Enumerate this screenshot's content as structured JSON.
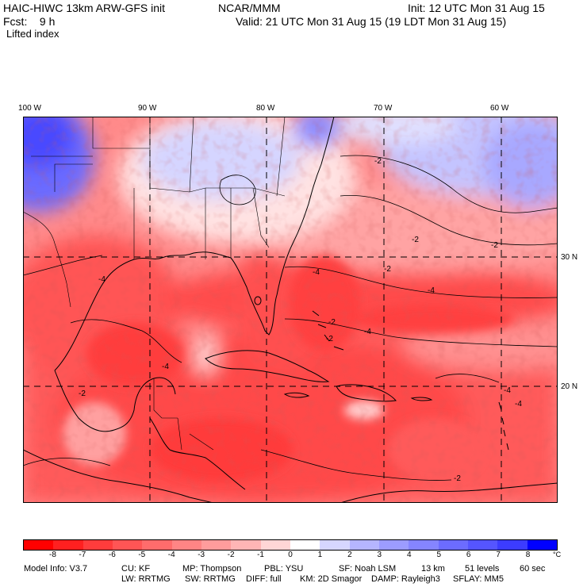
{
  "header": {
    "model_title": "HAIC-HIWC 13km ARW-GFS init",
    "institution": "NCAR/MMM",
    "init": "Init: 12 UTC Mon 31 Aug 15",
    "forecast": "Fcst:    9 h",
    "valid": "Valid: 21 UTC Mon 31 Aug 15 (19 LDT Mon 31 Aug 15)",
    "field": "Lifted index"
  },
  "axes": {
    "longitude_labels": [
      "100 W",
      "90 W",
      "80 W",
      "70 W",
      "60 W"
    ],
    "latitude_labels": [
      "30 N",
      "20 N"
    ]
  },
  "map": {
    "contour_labels": [
      "-2",
      "-2",
      "-4",
      "-4",
      "-4",
      "-2",
      "-2",
      "-4",
      "-4",
      "-2",
      "-4",
      "-2",
      "-2",
      "-2",
      "-4"
    ]
  },
  "legend": {
    "ticks": [
      "-8",
      "-7",
      "-6",
      "-5",
      "-4",
      "-3",
      "-2",
      "-1",
      "0",
      "1",
      "2",
      "3",
      "4",
      "5",
      "6",
      "7",
      "8"
    ],
    "unit": "°C",
    "colors": [
      "#ff0000",
      "#ff2020",
      "#ff3c3c",
      "#ff5555",
      "#ff6c6c",
      "#ff8585",
      "#ff9c9c",
      "#ffb5b5",
      "#ffd6d6",
      "#ffffff",
      "#d6d6ff",
      "#b5b5ff",
      "#9c9cff",
      "#8585ff",
      "#6c6cff",
      "#5555ff",
      "#3c3cff",
      "#0000ff"
    ]
  },
  "model_info": {
    "line1": [
      "Model Info: V3.7",
      "CU: KF",
      "MP: Thompson",
      "PBL: YSU",
      "SF: Noah LSM",
      "13 km",
      "51 levels",
      "60 sec"
    ],
    "line2": [
      "LW: RRTMG",
      "SW: RRTMG",
      "DIFF: full",
      "KM: 2D Smagor",
      "DAMP: Rayleigh3",
      "SFLAY: MM5"
    ]
  }
}
